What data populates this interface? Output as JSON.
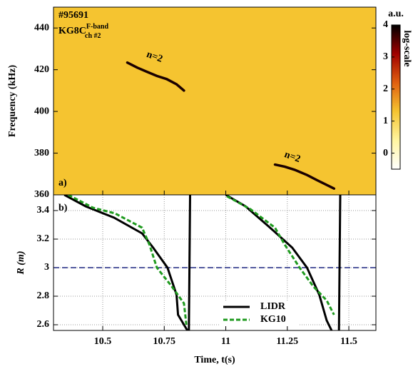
{
  "chart_data": [
    {
      "type": "spectrogram",
      "shot": "#95691",
      "diagnostic": {
        "label": "KG8C",
        "sup": "F-band",
        "sub": "ch #2"
      },
      "panel_label": "a)",
      "ylabel": "Frequency (kHz)",
      "xlim": [
        10.3,
        11.61
      ],
      "xticks": [
        10.5,
        10.75,
        11,
        11.25,
        11.5
      ],
      "ylim": [
        360,
        450
      ],
      "yticks": [
        360,
        380,
        400,
        420,
        440
      ],
      "colorbar": {
        "unit": "a.u.",
        "scale_label": "log-scale",
        "clim": [
          -0.5,
          4
        ],
        "ticks": [
          0,
          1,
          2,
          3,
          4
        ],
        "colors": [
          "#ffffff",
          "#fff5a0",
          "#f5c430",
          "#e06010",
          "#a00000",
          "#000000"
        ]
      },
      "background_value": 1.3,
      "series": [
        {
          "x": [
            10.6,
            10.64,
            10.68,
            10.72,
            10.76,
            10.8,
            10.83
          ],
          "values": [
            423.4,
            421,
            419,
            417,
            415.5,
            413,
            410
          ],
          "color": "#1a0000"
        },
        {
          "x": [
            11.2,
            11.24,
            11.28,
            11.33,
            11.38,
            11.44
          ],
          "values": [
            374.5,
            373.5,
            372,
            369.5,
            366.5,
            363
          ],
          "color": "#1a0000"
        }
      ],
      "annotations": [
        {
          "text": "n=2",
          "x": 10.71,
          "y": 426
        },
        {
          "text": "n=2",
          "x": 11.27,
          "y": 378
        }
      ]
    },
    {
      "type": "line",
      "panel_label": "b)",
      "xlabel": "Time, t(s)",
      "ylabel": "R (m)",
      "xlim": [
        10.3,
        11.61
      ],
      "xticks": [
        10.5,
        10.75,
        11,
        11.25,
        11.5
      ],
      "ylim": [
        2.56,
        3.51
      ],
      "yticks": [
        2.6,
        2.8,
        3,
        3.2,
        3.4
      ],
      "grid": true,
      "hline": {
        "value": 3,
        "color": "#1a237e"
      },
      "series": [
        {
          "name": "LIDR",
          "color": "#000000",
          "style": "solid",
          "x": [
            10.344,
            10.43,
            10.546,
            10.66,
            10.705,
            10.763,
            10.8,
            10.806,
            10.844,
            10.85,
            10.855,
            null,
            11.0,
            11.08,
            11.18,
            11.27,
            11.33,
            11.38,
            11.41,
            11.43,
            null,
            11.46,
            11.465
          ],
          "values": [
            3.51,
            3.43,
            3.35,
            3.24,
            3.14,
            3.0,
            2.81,
            2.67,
            2.56,
            2.56,
            3.51,
            null,
            3.51,
            3.43,
            3.28,
            3.14,
            3.0,
            2.81,
            2.63,
            2.56,
            null,
            2.56,
            3.51
          ]
        },
        {
          "name": "KG10",
          "color": "#1e9a1e",
          "style": "dashed",
          "x": [
            10.36,
            10.46,
            10.55,
            10.66,
            10.69,
            10.72,
            10.78,
            10.83,
            10.84,
            null,
            11.005,
            11.1,
            11.2,
            11.24,
            11.3,
            11.355,
            11.41,
            11.44
          ],
          "values": [
            3.51,
            3.42,
            3.38,
            3.28,
            3.16,
            3.0,
            2.87,
            2.75,
            2.6,
            null,
            3.5,
            3.41,
            3.28,
            3.16,
            3.0,
            2.87,
            2.77,
            2.67
          ]
        }
      ]
    }
  ]
}
